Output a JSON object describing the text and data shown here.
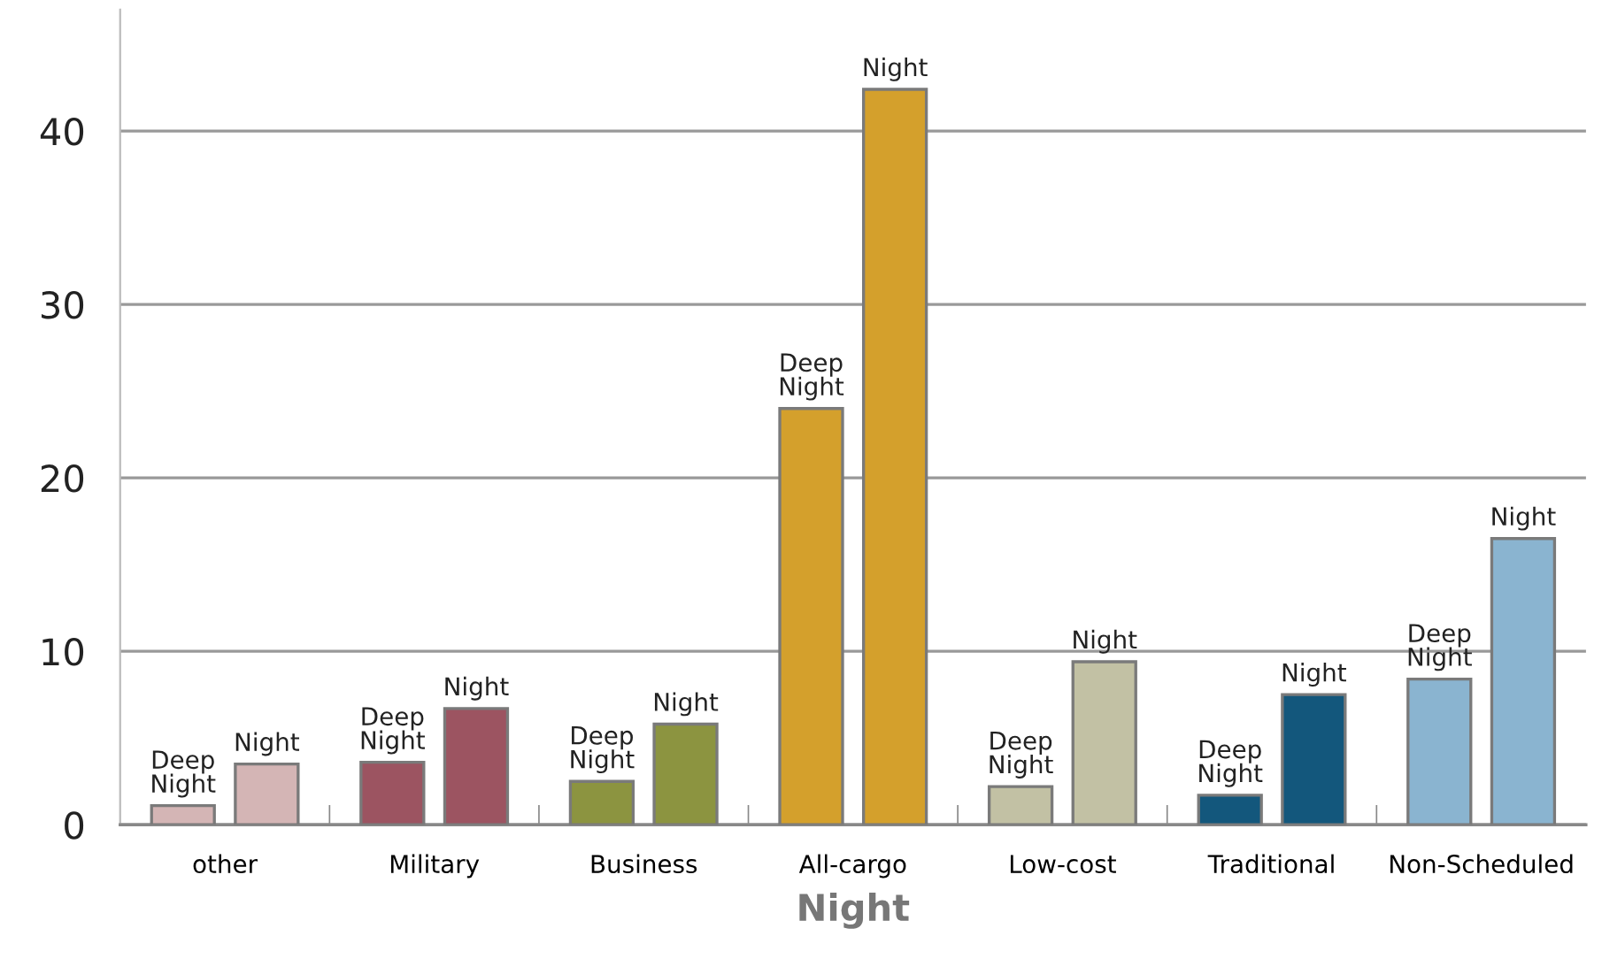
{
  "chart_data": {
    "type": "bar",
    "xlabel": "Night",
    "categories": [
      "other",
      "Military",
      "Business",
      "All-cargo",
      "Low-cost",
      "Traditional",
      "Non-Scheduled"
    ],
    "series": [
      {
        "name": "Deep\nNight",
        "colors": [
          "#d4b5b5",
          "#9c5461",
          "#8c9440",
          "#d4a02c",
          "#c2c1a4",
          "#13577c",
          "#8ab4d0"
        ],
        "values": [
          1.1,
          3.6,
          2.5,
          24.0,
          2.2,
          1.7,
          8.4
        ]
      },
      {
        "name": "Night",
        "colors": [
          "#d4b5b5",
          "#9c5461",
          "#8c9440",
          "#d4a02c",
          "#c2c1a4",
          "#13577c",
          "#8ab4d0"
        ],
        "values": [
          3.5,
          6.7,
          5.8,
          42.4,
          9.4,
          7.5,
          16.5
        ]
      }
    ],
    "ylim": [
      0,
      47
    ],
    "yticks": [
      0,
      10,
      20,
      30,
      40
    ],
    "grid": "y",
    "legend": false
  }
}
